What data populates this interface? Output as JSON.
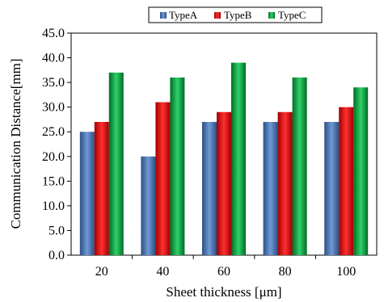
{
  "chart_data": {
    "type": "bar",
    "categories": [
      "20",
      "40",
      "60",
      "80",
      "100"
    ],
    "series": [
      {
        "name": "TypeA",
        "color": "#3f6aa8",
        "values": [
          25,
          20,
          27,
          27,
          27
        ]
      },
      {
        "name": "TypeB",
        "color": "#e01010",
        "values": [
          27,
          31,
          29,
          29,
          30
        ]
      },
      {
        "name": "TypeC",
        "color": "#10a040",
        "values": [
          37,
          36,
          39,
          36,
          34
        ]
      }
    ],
    "xlabel": "Sheet thickness [μm]",
    "ylabel": "Communication Distance[mm]",
    "ylim": [
      0,
      45
    ],
    "yticks": [
      "0.0",
      "5.0",
      "10.0",
      "15.0",
      "20.0",
      "25.0",
      "30.0",
      "35.0",
      "40.0",
      "45.0"
    ],
    "grid": false,
    "legend_position": "top"
  }
}
